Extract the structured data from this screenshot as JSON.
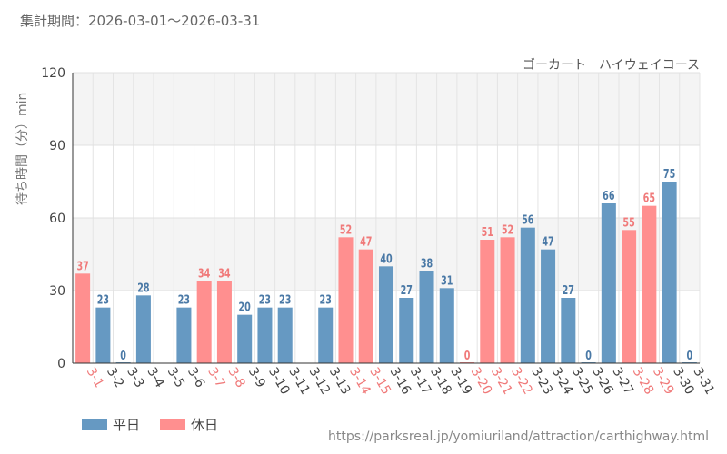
{
  "header": {
    "period": "集計期間：2026-03-01～2026-03-31",
    "attraction": "ゴーカート　ハイウェイコース"
  },
  "footer": {
    "source": "https://parksreal.jp/yomiuriland/attraction/carthighway.html"
  },
  "colors": {
    "weekday": "#6699c2",
    "holiday": "#ff8f8f",
    "weekday_label": "#4a79a6",
    "holiday_label": "#f07a7a"
  },
  "chart_data": {
    "type": "bar",
    "ylabel": "待ち時間（分）min",
    "ylim": [
      0,
      120
    ],
    "yticks": [
      0,
      30,
      60,
      90,
      120
    ],
    "grid": true,
    "legend": [
      {
        "key": "weekday",
        "label": "平日"
      },
      {
        "key": "holiday",
        "label": "休日"
      }
    ],
    "categories": [
      "3-1",
      "3-2",
      "3-3",
      "3-4",
      "3-5",
      "3-6",
      "3-7",
      "3-8",
      "3-9",
      "3-10",
      "3-11",
      "3-12",
      "3-13",
      "3-14",
      "3-15",
      "3-16",
      "3-17",
      "3-18",
      "3-19",
      "3-20",
      "3-21",
      "3-22",
      "3-23",
      "3-24",
      "3-25",
      "3-26",
      "3-27",
      "3-28",
      "3-29",
      "3-30",
      "3-31"
    ],
    "values": [
      37,
      23,
      0,
      28,
      null,
      23,
      34,
      34,
      20,
      23,
      23,
      null,
      23,
      52,
      47,
      40,
      27,
      38,
      31,
      0,
      51,
      52,
      56,
      47,
      27,
      0,
      66,
      55,
      65,
      75,
      0
    ],
    "day_type": [
      "holiday",
      "weekday",
      "weekday",
      "weekday",
      "weekday",
      "weekday",
      "holiday",
      "holiday",
      "weekday",
      "weekday",
      "weekday",
      "weekday",
      "weekday",
      "holiday",
      "holiday",
      "weekday",
      "weekday",
      "weekday",
      "weekday",
      "holiday",
      "holiday",
      "holiday",
      "weekday",
      "weekday",
      "weekday",
      "weekday",
      "weekday",
      "holiday",
      "holiday",
      "weekday",
      "weekday"
    ]
  }
}
